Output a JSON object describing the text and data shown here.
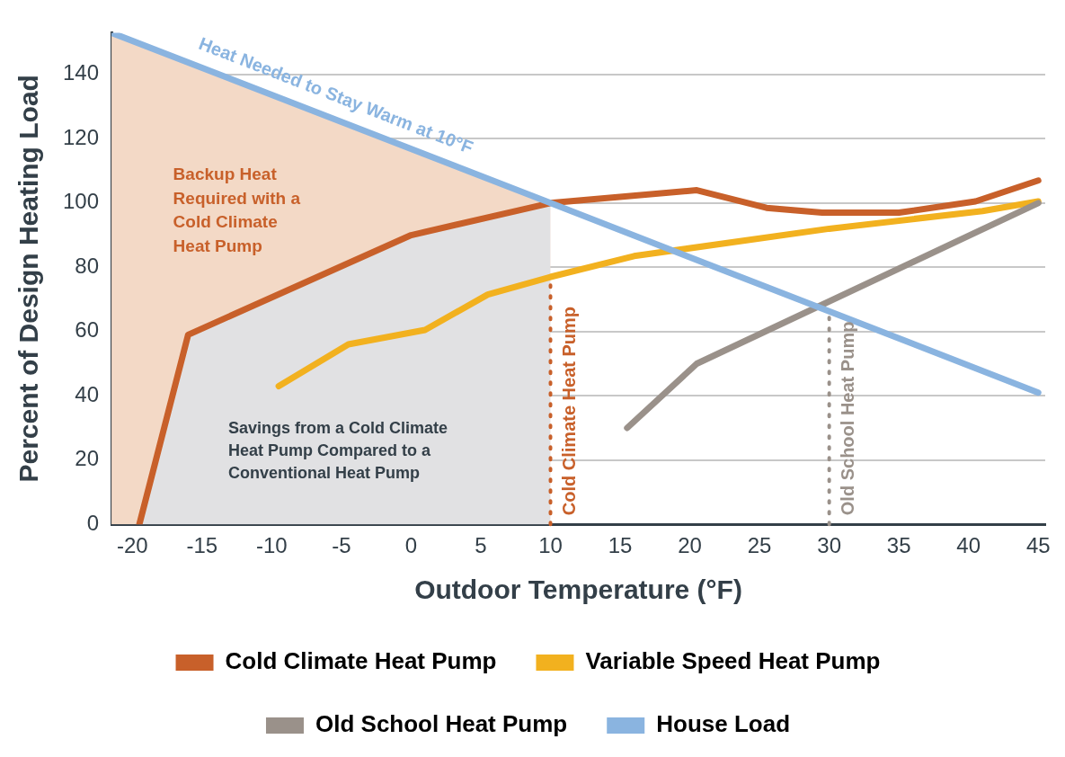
{
  "chart_data": {
    "type": "line",
    "xlabel": "Outdoor Temperature (°F)",
    "ylabel": "Percent of Design Heating Load",
    "xlim": [
      -21.5,
      45.5
    ],
    "xticks": [
      -20,
      -15,
      -10,
      -5,
      0,
      5,
      10,
      15,
      20,
      25,
      30,
      35,
      40,
      45
    ],
    "ylim": [
      0,
      153
    ],
    "yticks": [
      0,
      20,
      40,
      60,
      80,
      100,
      120,
      140
    ],
    "grid": "y",
    "legend": "bottom",
    "marker": "none",
    "line_style": "solid",
    "series": [
      {
        "type": "area",
        "color": "#f3d9c6",
        "x": [
          -21.5,
          10
        ],
        "values": [
          153,
          100
        ]
      },
      {
        "type": "area",
        "color": "#e1e1e3",
        "x": [
          -19.5,
          -16,
          0,
          10
        ],
        "values": [
          0,
          59,
          90,
          100
        ]
      },
      {
        "name": "Cold Climate Heat Pump",
        "color": "#c8602a",
        "x": [
          -19.5,
          -16,
          0,
          10,
          20.5,
          25.5,
          29.5,
          35,
          40.5,
          45
        ],
        "values": [
          0,
          59,
          90,
          100,
          104,
          98.5,
          97,
          97,
          100.5,
          107
        ]
      },
      {
        "name": "Variable Speed Heat Pump",
        "color": "#f2b11f",
        "x": [
          -9.5,
          -4.5,
          1,
          5.5,
          10,
          16,
          30,
          41,
          45
        ],
        "values": [
          43,
          56,
          60.5,
          71.5,
          77,
          83.5,
          92,
          97.5,
          100.5
        ]
      },
      {
        "name": "Old School Heat Pump",
        "color": "#9a918a",
        "x": [
          15.5,
          20.5,
          45
        ],
        "values": [
          30,
          50,
          100
        ]
      },
      {
        "name": "House Load",
        "color": "#8ab4e0",
        "x": [
          -21.5,
          10,
          45
        ],
        "values": [
          153,
          100,
          41
        ]
      }
    ],
    "ref_lines": [
      {
        "axis": "x",
        "value": 10,
        "label": "Cold Climate Heat Pump",
        "color": "#c8602a",
        "line_style": "dotted"
      },
      {
        "axis": "x",
        "value": 30,
        "label": "Old School Heat Pump",
        "color": "#9a918a",
        "line_style": "dotted"
      }
    ],
    "annotations": [
      "Heat Needed to Stay Warm at 10°F",
      "Backup Heat\nRequired with a\nCold Climate\nHeat Pump",
      "Savings from a Cold Climate\nHeat Pump Compared to a\nConventional Heat Pump"
    ]
  }
}
